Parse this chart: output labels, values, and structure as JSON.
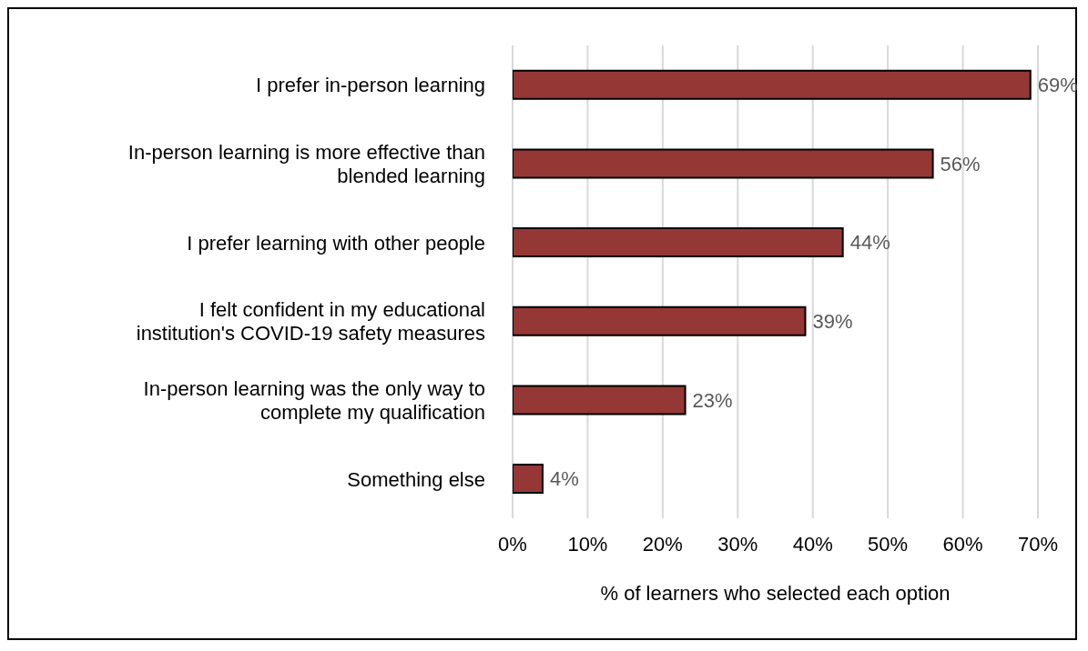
{
  "chart_data": {
    "type": "bar",
    "orientation": "horizontal",
    "xlabel": "% of learners who selected each option",
    "categories": [
      "I prefer in-person learning",
      "In-person learning is more effective than blended learning",
      "I prefer learning with other people",
      "I felt confident in my educational institution's COVID-19 safety measures",
      "In-person learning was the only way to complete my qualification",
      "Something else"
    ],
    "values": [
      69,
      56,
      44,
      39,
      23,
      4
    ],
    "value_labels": [
      "69%",
      "56%",
      "44%",
      "39%",
      "23%",
      "4%"
    ],
    "color": "#953735",
    "xlim": [
      0,
      70
    ],
    "xticks": [
      {
        "value": 0,
        "label": "0%"
      },
      {
        "value": 10,
        "label": "10%"
      },
      {
        "value": 20,
        "label": "20%"
      },
      {
        "value": 30,
        "label": "30%"
      },
      {
        "value": 40,
        "label": "40%"
      },
      {
        "value": 50,
        "label": "50%"
      },
      {
        "value": 60,
        "label": "60%"
      },
      {
        "value": 70,
        "label": "70%"
      }
    ],
    "grid": "x",
    "legend": false
  }
}
